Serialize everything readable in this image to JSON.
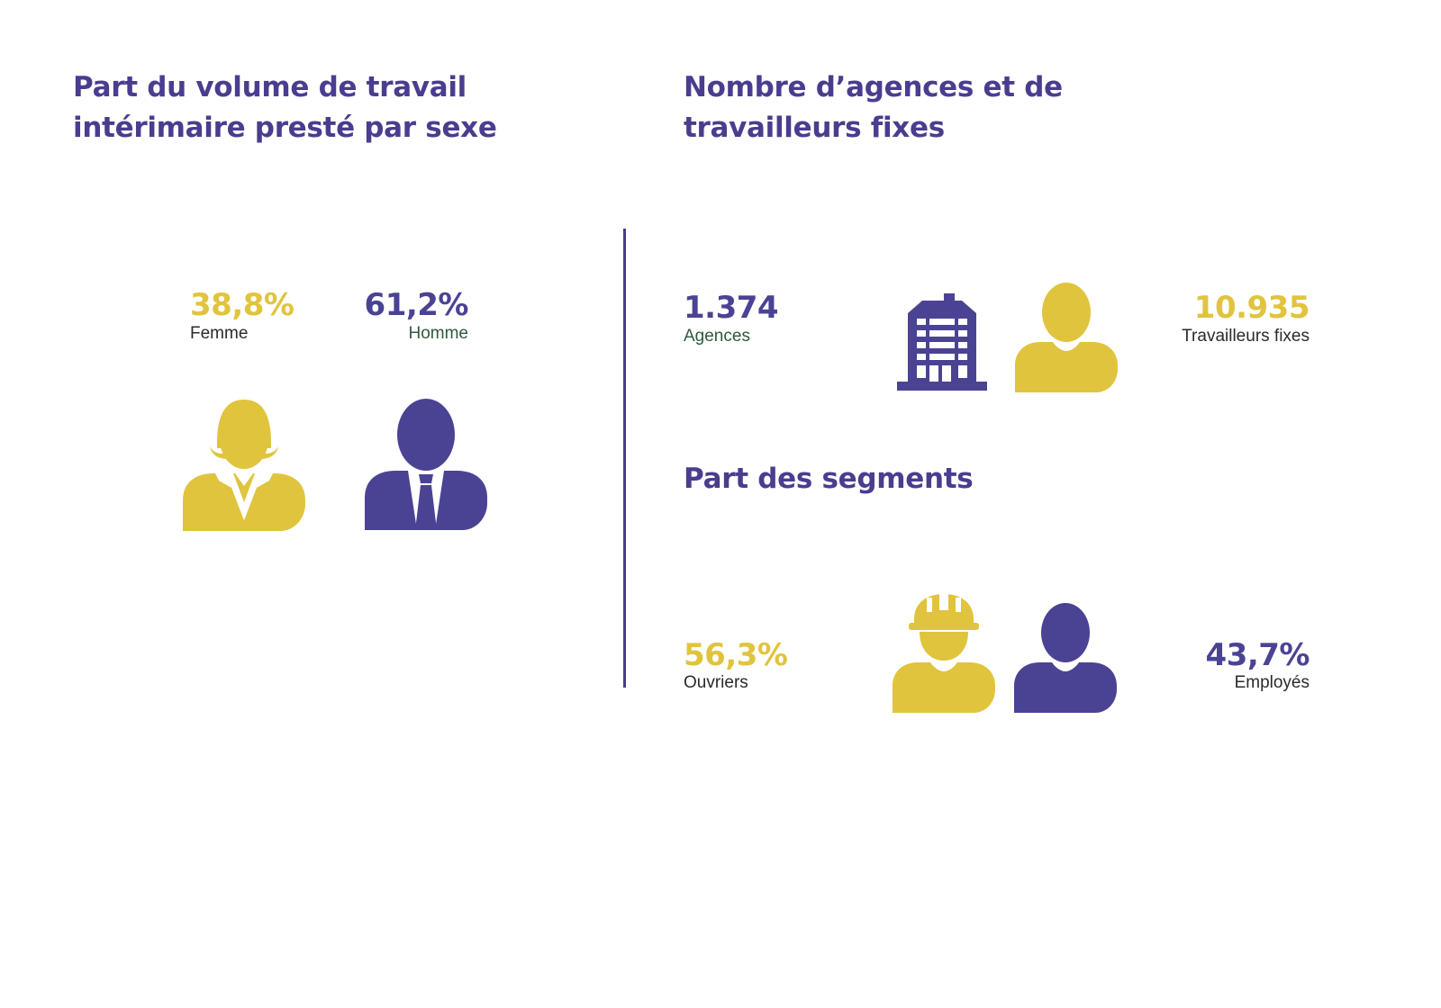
{
  "colors": {
    "yellow": "#e0c43d",
    "purple": "#4a4394",
    "heading": "#4a3d8f"
  },
  "left": {
    "title_line1": "Part du volume de travail",
    "title_line2": "intérimaire presté par sexe",
    "femme": {
      "value": "38,8%",
      "label": "Femme",
      "icon": "woman-icon"
    },
    "homme": {
      "value": "61,2%",
      "label": "Homme",
      "icon": "man-icon"
    }
  },
  "right": {
    "title_line1": "Nombre d’agences et de",
    "title_line2": "travailleurs fixes",
    "agences": {
      "value": "1.374",
      "label": "Agences",
      "icon": "building-icon"
    },
    "fixes": {
      "value": "10.935",
      "label": "Travailleurs fixes",
      "icon": "person-icon"
    },
    "segments_title": "Part des segments",
    "ouvriers": {
      "value": "56,3%",
      "label": "Ouvriers",
      "icon": "worker-hardhat-icon"
    },
    "employes": {
      "value": "43,7%",
      "label": "Employés",
      "icon": "employee-icon"
    }
  }
}
